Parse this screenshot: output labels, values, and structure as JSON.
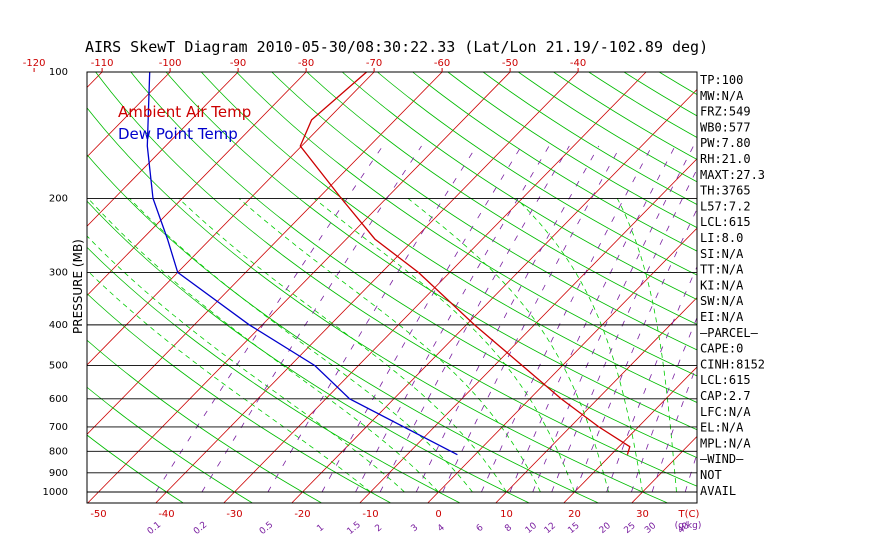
{
  "title": "AIRS SkewT Diagram 2010-05-30/08:30:22.33 (Lat/Lon 21.19/-102.89 deg)",
  "colors": {
    "temp": "#cc0000",
    "dew": "#0000cc",
    "isotherm": "#cc0000",
    "dry_adiabat": "#00bb00",
    "moist_adiabat": "#00cc00",
    "mixing_ratio": "#7a1fa0",
    "isobar": "#000000"
  },
  "chart_data": {
    "type": "line",
    "title": "AIRS SkewT Diagram 2010-05-30/08:30:22.33 (Lat/Lon 21.19/-102.89 deg)",
    "ylabel": "PRESSURE (MB)",
    "xlabel": "T(C)",
    "pressure_ticks": [
      100,
      200,
      300,
      400,
      500,
      600,
      700,
      800,
      900,
      1000
    ],
    "pressure_tick_labels": [
      "100",
      "200",
      "300",
      "400",
      "500",
      "600",
      "700",
      "800",
      "900",
      "1000"
    ],
    "top_temp_ticks": [
      -120,
      -110,
      -100,
      -90,
      -80,
      -70,
      -60,
      -50,
      -40
    ],
    "top_temp_tick_labels": [
      "-120",
      "-110",
      "-100",
      "-90",
      "-80",
      "-70",
      "-60",
      "-50",
      "-40"
    ],
    "bottom_temp_ticks": [
      -50,
      -40,
      -30,
      -20,
      -10,
      0,
      10,
      20,
      30
    ],
    "bottom_temp_tick_labels": [
      "-50",
      "-40",
      "-30",
      "-20",
      "-10",
      "0",
      "10",
      "20",
      "30"
    ],
    "bottom_unit_label": "T(C)",
    "mixing_ratio_ticks": [
      0.1,
      0.2,
      0.5,
      1,
      1.5,
      2,
      3,
      4,
      6,
      8,
      10,
      12,
      15,
      20,
      25,
      30,
      40
    ],
    "mixing_ratio_tick_labels": [
      "0.1",
      "0.2",
      "0.5",
      "1",
      "1.5",
      "2",
      "3",
      "4",
      "6",
      "8",
      "10",
      "12",
      "15",
      "20",
      "25",
      "30",
      "40"
    ],
    "mixing_ratio_unit_label": "(g/kg)",
    "legend": [
      {
        "name": "Ambient Air Temp",
        "color": "#cc0000"
      },
      {
        "name": "Dew Point Temp",
        "color": "#0000cc"
      }
    ],
    "series": [
      {
        "name": "Ambient Air Temp",
        "points": [
          {
            "p": 815,
            "t": 22.4
          },
          {
            "p": 780,
            "t": 21.6
          },
          {
            "p": 700,
            "t": 14.2
          },
          {
            "p": 600,
            "t": 4.6
          },
          {
            "p": 500,
            "t": -5.9
          },
          {
            "p": 400,
            "t": -18.8
          },
          {
            "p": 300,
            "t": -34.6
          },
          {
            "p": 250,
            "t": -45.8
          },
          {
            "p": 200,
            "t": -56.6
          },
          {
            "p": 150,
            "t": -70.2
          },
          {
            "p": 130,
            "t": -72.3
          },
          {
            "p": 100,
            "t": -71.1
          }
        ]
      },
      {
        "name": "Dew Point Temp",
        "points": [
          {
            "p": 815,
            "t": -2.6
          },
          {
            "p": 600,
            "t": -26.5
          },
          {
            "p": 500,
            "t": -36.4
          },
          {
            "p": 400,
            "t": -51.9
          },
          {
            "p": 300,
            "t": -70.0
          },
          {
            "p": 250,
            "t": -76.3
          },
          {
            "p": 200,
            "t": -84.3
          },
          {
            "p": 150,
            "t": -92.7
          },
          {
            "p": 100,
            "t": -103.0
          }
        ]
      }
    ]
  },
  "indices": [
    "TP:100",
    "MW:N/A",
    "FRZ:549",
    "WB0:577",
    "PW:7.80",
    "RH:21.0",
    "MAXT:27.3",
    "TH:3765",
    "L57:7.2",
    "LCL:615",
    "LI:8.0",
    "SI:N/A",
    "TT:N/A",
    "KI:N/A",
    "SW:N/A",
    "EI:N/A",
    "—PARCEL—",
    "CAPE:0",
    "CINH:8152",
    "LCL:615",
    "CAP:2.7",
    "LFC:N/A",
    "EL:N/A",
    "MPL:N/A",
    "—WIND—",
    "NOT",
    "AVAIL"
  ]
}
